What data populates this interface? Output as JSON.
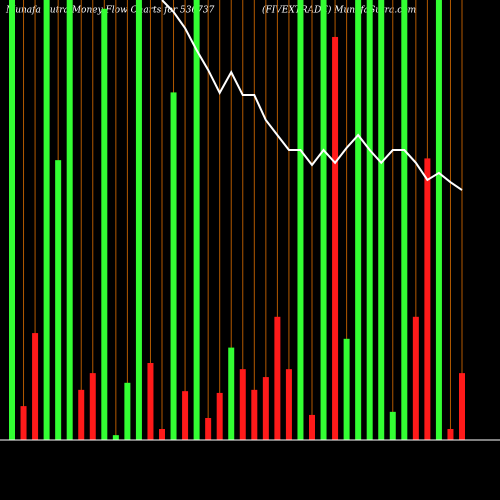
{
  "chart_data": {
    "type": "bar",
    "title": "Munafa Sutra Money Flow Charts for 536737",
    "subtitle": "(FIVEXTRADE) MunafaSutra.com",
    "categories": [
      null,
      null,
      null,
      null,
      null,
      null,
      null,
      null,
      null,
      null,
      null,
      null,
      null,
      null,
      null,
      null,
      null,
      null,
      null,
      null,
      null,
      null,
      null,
      null,
      null,
      null,
      null,
      null,
      null,
      null,
      null,
      null,
      null,
      null,
      null,
      null,
      null,
      null,
      null,
      null
    ],
    "values": [
      100,
      7.7,
      24.3,
      100,
      63.6,
      100,
      11.4,
      15.2,
      98,
      1.1,
      13,
      100,
      17.5,
      2.5,
      79,
      11.1,
      100,
      5,
      10.7,
      21,
      16.1,
      11.4,
      14.3,
      28,
      16.1,
      100,
      5.7,
      100,
      91.6,
      23,
      100,
      100,
      100,
      6.4,
      100,
      28,
      64,
      100,
      2.5,
      15.2
    ],
    "colors": [
      "#33ff33",
      "#ff1a1a",
      "#ff1a1a",
      "#33ff33",
      "#33ff33",
      "#33ff33",
      "#ff1a1a",
      "#ff1a1a",
      "#33ff33",
      "#33ff33",
      "#33ff33",
      "#33ff33",
      "#ff1a1a",
      "#ff1a1a",
      "#33ff33",
      "#ff1a1a",
      "#33ff33",
      "#ff1a1a",
      "#ff1a1a",
      "#33ff33",
      "#ff1a1a",
      "#ff1a1a",
      "#ff1a1a",
      "#ff1a1a",
      "#ff1a1a",
      "#33ff33",
      "#ff1a1a",
      "#33ff33",
      "#ff1a1a",
      "#33ff33",
      "#33ff33",
      "#33ff33",
      "#33ff33",
      "#33ff33",
      "#33ff33",
      "#ff1a1a",
      "#ff1a1a",
      "#33ff33",
      "#ff1a1a",
      "#ff1a1a"
    ],
    "line": {
      "color": "#ffffff",
      "values": [
        null,
        null,
        null,
        null,
        null,
        null,
        null,
        null,
        null,
        null,
        null,
        null,
        null,
        100,
        97.3,
        93.6,
        88.6,
        84.1,
        78.9,
        83.6,
        78.4,
        78.4,
        72.7,
        69.3,
        65.9,
        65.9,
        62.5,
        65.9,
        63,
        66.4,
        69.3,
        65.9,
        63,
        65.9,
        65.9,
        63,
        59.1,
        60.7,
        58.6,
        56.8
      ]
    },
    "ylim": [
      0,
      100
    ],
    "guide_color": "#b35900"
  }
}
